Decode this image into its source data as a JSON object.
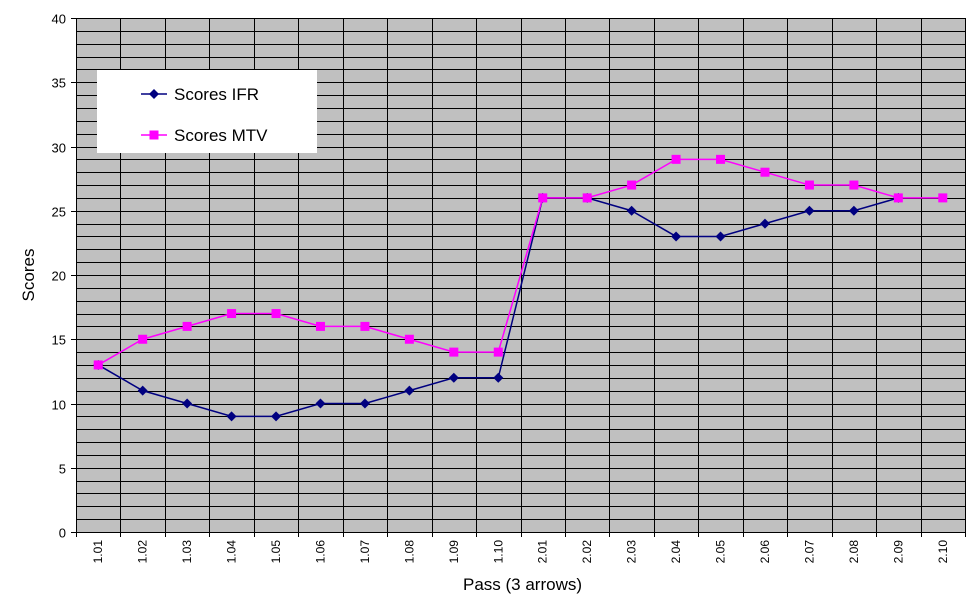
{
  "chart_data": {
    "type": "line",
    "xlabel": "Pass (3 arrows)",
    "ylabel": "Scores",
    "ylim": [
      0,
      40
    ],
    "y_major_step": 5,
    "y_minor_step": 1,
    "categories": [
      "1.01",
      "1.02",
      "1.03",
      "1.04",
      "1.05",
      "1.06",
      "1.07",
      "1.08",
      "1.09",
      "1.10",
      "2.01",
      "2.02",
      "2.03",
      "2.04",
      "2.05",
      "2.06",
      "2.07",
      "2.08",
      "2.09",
      "2.10"
    ],
    "series": [
      {
        "name": "Scores IFR",
        "color": "#000080",
        "marker": "diamond",
        "values": [
          13,
          11,
          10,
          9,
          9,
          10,
          10,
          11,
          12,
          12,
          26,
          26,
          25,
          23,
          23,
          24,
          25,
          25,
          26,
          null
        ]
      },
      {
        "name": "Scores MTV",
        "color": "#FF00FF",
        "marker": "square",
        "values": [
          13,
          15,
          16,
          17,
          17,
          16,
          16,
          15,
          14,
          14,
          26,
          26,
          27,
          29,
          29,
          28,
          27,
          27,
          26,
          26
        ]
      }
    ],
    "grid": true,
    "legend_position": "top-left",
    "plot_background": "#C0C0C0",
    "grid_color": "#000000"
  }
}
